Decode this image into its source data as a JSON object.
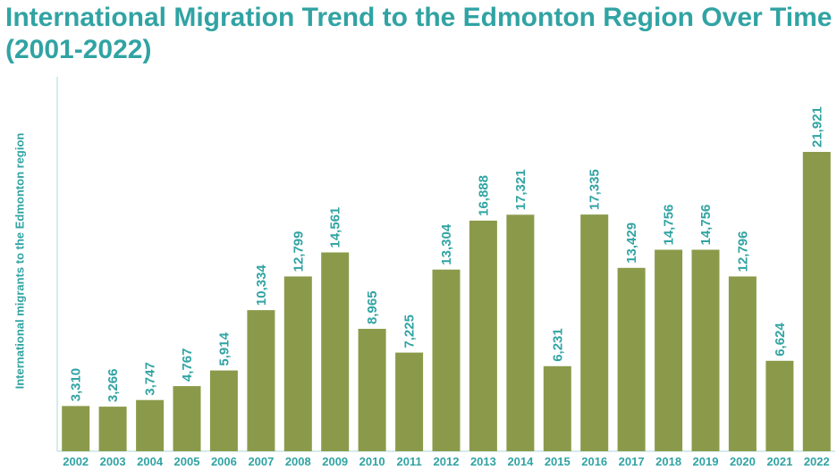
{
  "chart_data": {
    "type": "bar",
    "title": "International Migration Trend to the Edmonton Region Over Time (2001-2022)",
    "ylabel": "International migrants to the Edmonton region",
    "xlabel": "",
    "categories": [
      "2002",
      "2003",
      "2004",
      "2005",
      "2006",
      "2007",
      "2008",
      "2009",
      "2010",
      "2011",
      "2012",
      "2013",
      "2014",
      "2015",
      "2016",
      "2017",
      "2018",
      "2019",
      "2020",
      "2021",
      "2022"
    ],
    "values": [
      3310,
      3266,
      3747,
      4767,
      5914,
      10334,
      12799,
      14561,
      8965,
      7225,
      13304,
      16888,
      17321,
      6231,
      17335,
      13429,
      14756,
      14756,
      12796,
      6624,
      21921
    ],
    "value_labels": [
      "3,310",
      "3,266",
      "3,747",
      "4,767",
      "5,914",
      "10,334",
      "12,799",
      "14,561",
      "8,965",
      "7,225",
      "13,304",
      "16,888",
      "17,321",
      "6,231",
      "17,335",
      "13,429",
      "14,756",
      "14,756",
      "12,796",
      "6,624",
      "21,921"
    ],
    "ylim": [
      0,
      22000
    ],
    "grid": false,
    "colors": {
      "bar": "#8a9a4a",
      "text": "#31a3a3",
      "axis": "#a9d8de"
    }
  }
}
